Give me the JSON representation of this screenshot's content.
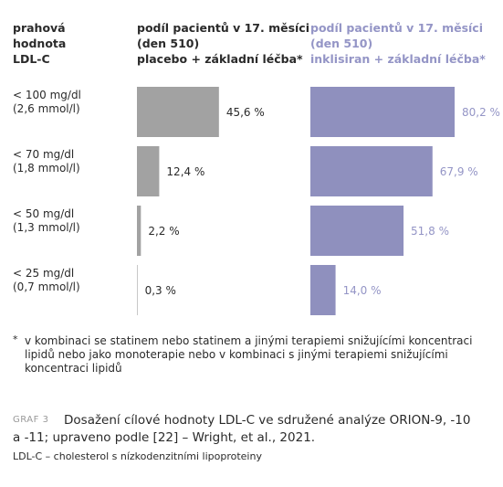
{
  "header": "prahová\nhodnota\nLDL-C",
  "chart_data": {
    "type": "bar",
    "orientation": "horizontal",
    "categories": [
      "< 100 mg/dl\n(2,6 mmol/l)",
      "< 70 mg/dl\n(1,8 mmol/l)",
      "< 50 mg/dl\n(1,3 mmol/l)",
      "< 25 mg/dl\n(0,7 mmol/l)"
    ],
    "series": [
      {
        "name": "podíl pacientů v 17. měsíci\n(den 510)\nplacebo + základní léčba*",
        "color": "#a2a2a2",
        "text_color": "#2a2a2a",
        "values": [
          45.6,
          12.4,
          2.2,
          0.3
        ],
        "value_labels": [
          "45,6 %",
          "12,4 %",
          "2,2 %",
          "0,3 %"
        ]
      },
      {
        "name": "podíl pacientů v 17. měsíci\n(den 510)\ninklisiran + základní léčba*",
        "color": "#8f90be",
        "text_color": "#9495c6",
        "values": [
          80.2,
          67.9,
          51.8,
          14.0
        ],
        "value_labels": [
          "80,2 %",
          "67,9 %",
          "51,8 %",
          "14,0 %"
        ]
      }
    ]
  },
  "footnote": {
    "mark": "*",
    "text": "v kombinaci se statinem nebo statinem a jinými terapiemi snižujícími koncentraci\nlipidů nebo jako monoterapie nebo v kombinaci s jinými terapiemi snižujícími\nkoncentraci lipidů"
  },
  "caption": {
    "label": "GRAF 3",
    "text": "Dosažení cílové hodnoty LDL-C ve sdružené analýze ORION-9, -10\na -11; upraveno podle [22] – Wright, et al., 2021."
  },
  "abbreviation": "LDL-C – cholesterol s nízkodenzitními lipoproteiny"
}
